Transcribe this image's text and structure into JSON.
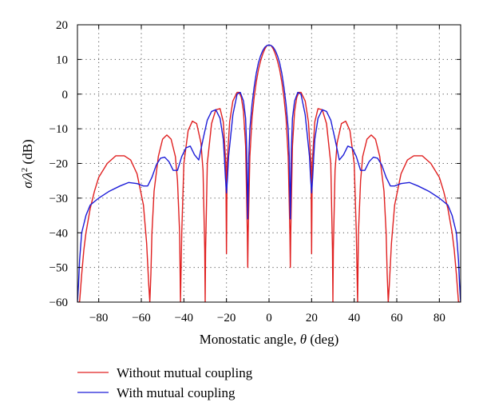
{
  "chart_data": {
    "type": "line",
    "xlabel_prefix": "Monostatic angle, ",
    "xlabel_symbol": "θ",
    "xlabel_suffix": " (deg)",
    "ylabel_prefix": "σ/λ",
    "ylabel_sup": "2",
    "ylabel_suffix": " (dB)",
    "xlim": [
      -90,
      90
    ],
    "ylim": [
      -60,
      20
    ],
    "xticks": [
      -80,
      -60,
      -40,
      -20,
      0,
      20,
      40,
      60,
      80
    ],
    "yticks": [
      -60,
      -50,
      -40,
      -30,
      -20,
      -10,
      0,
      10,
      20
    ],
    "grid": true,
    "legend_position": "bottom-left",
    "series": [
      {
        "name": "Without mutual coupling",
        "color": "#e02020",
        "x": [
          -90,
          -89,
          -88,
          -87,
          -86,
          -84,
          -82,
          -80,
          -76,
          -72,
          -68,
          -65,
          -62,
          -59,
          -57.5,
          -56.5,
          -56,
          -55.5,
          -55,
          -54,
          -52,
          -50,
          -48,
          -46,
          -44,
          -43,
          -42,
          -41.6,
          -41,
          -40,
          -38,
          -36,
          -34,
          -32,
          -31,
          -30.2,
          -30,
          -29.8,
          -29,
          -27,
          -25,
          -23,
          -21.5,
          -20.3,
          -20,
          -19.7,
          -18.5,
          -17,
          -15,
          -14,
          -13,
          -12,
          -11,
          -10.2,
          -10,
          -9.8,
          -9,
          -8,
          -7,
          -6,
          -5,
          -4,
          -3,
          -2,
          -1,
          0,
          1,
          2,
          3,
          4,
          5,
          6,
          7,
          8,
          9,
          9.8,
          10,
          10.2,
          11,
          12,
          13,
          14,
          15,
          17,
          18.5,
          19.7,
          20,
          20.3,
          21.5,
          23,
          25,
          27,
          29,
          29.8,
          30,
          30.2,
          31,
          32,
          34,
          36,
          38,
          40,
          41,
          41.6,
          42,
          43,
          44,
          46,
          48,
          50,
          52,
          54,
          55,
          55.5,
          56,
          56.5,
          57.5,
          59,
          62,
          65,
          68,
          72,
          76,
          80,
          82,
          84,
          86,
          87,
          88,
          89,
          90
        ],
        "y": [
          -60,
          -60,
          -52,
          -45,
          -40,
          -33,
          -28,
          -24,
          -20,
          -17.8,
          -17.8,
          -19,
          -23,
          -32,
          -43,
          -55,
          -60,
          -52,
          -40,
          -28,
          -18,
          -13,
          -11.8,
          -13,
          -18,
          -25,
          -40,
          -60,
          -40,
          -20,
          -10.5,
          -7.8,
          -8.5,
          -14,
          -22,
          -45,
          -60,
          -45,
          -20,
          -8.5,
          -4.5,
          -4.2,
          -8,
          -20,
          -46,
          -20,
          -8,
          -2,
          0.5,
          0.5,
          -1,
          -5,
          -15,
          -40,
          -50,
          -40,
          -18,
          -7,
          -1,
          3.5,
          7,
          9.5,
          11.5,
          13,
          14,
          14.2,
          14,
          13,
          11.5,
          9.5,
          7,
          3.5,
          -1,
          -7,
          -18,
          -40,
          -50,
          -40,
          -15,
          -5,
          -1,
          0.5,
          0.5,
          -2,
          -8,
          -20,
          -46,
          -20,
          -8,
          -4.2,
          -4.5,
          -8.5,
          -20,
          -45,
          -60,
          -45,
          -22,
          -14,
          -8.5,
          -7.8,
          -10.5,
          -20,
          -40,
          -60,
          -40,
          -25,
          -18,
          -13,
          -11.8,
          -13,
          -18,
          -28,
          -40,
          -52,
          -60,
          -55,
          -43,
          -32,
          -23,
          -19,
          -17.8,
          -17.8,
          -20,
          -24,
          -28,
          -33,
          -40,
          -45,
          -52,
          -60,
          -60
        ]
      },
      {
        "name": "With mutual coupling",
        "color": "#1c1cd8",
        "x": [
          -90,
          -89.5,
          -89,
          -88,
          -86,
          -84,
          -80,
          -75,
          -70,
          -66,
          -62,
          -59,
          -57,
          -55,
          -53,
          -51,
          -49,
          -47,
          -45,
          -43,
          -41,
          -39,
          -37,
          -35,
          -33,
          -31,
          -29,
          -27,
          -25,
          -23,
          -21.5,
          -21,
          -20.5,
          -20,
          -19.5,
          -19,
          -17,
          -15,
          -13.5,
          -12,
          -11,
          -10.5,
          -10,
          -9.5,
          -9,
          -8,
          -7,
          -6,
          -5,
          -4,
          -3,
          -2,
          -1,
          0,
          1,
          2,
          3,
          4,
          5,
          6,
          7,
          8,
          9,
          9.5,
          10,
          10.5,
          11,
          12,
          13.5,
          15,
          17,
          19,
          19.5,
          20,
          20.5,
          21,
          21.5,
          23,
          25,
          27,
          29,
          31,
          33,
          35,
          37,
          39,
          41,
          43,
          45,
          47,
          49,
          51,
          53,
          55,
          57,
          59,
          62,
          66,
          70,
          75,
          80,
          84,
          86,
          88,
          89,
          89.5,
          90
        ],
        "y": [
          -60,
          -55,
          -48,
          -40,
          -35,
          -32,
          -30,
          -28,
          -26.5,
          -25.5,
          -25.8,
          -26.5,
          -26.5,
          -24,
          -20.5,
          -18.5,
          -18.2,
          -19.5,
          -22,
          -22,
          -18,
          -15.5,
          -15,
          -17.5,
          -19,
          -13,
          -7.5,
          -5,
          -4.5,
          -7,
          -13,
          -18,
          -24,
          -28.5,
          -24,
          -18,
          -6,
          0,
          0.5,
          -2,
          -7,
          -16,
          -36,
          -18,
          -10,
          -3,
          2,
          6,
          9,
          11,
          12.5,
          13.5,
          14,
          14.2,
          14,
          13.5,
          12.5,
          11,
          9,
          6,
          2,
          -3,
          -10,
          -18,
          -36,
          -16,
          -7,
          -2,
          0.5,
          0,
          -6,
          -18,
          -24,
          -28.5,
          -24,
          -18,
          -13,
          -7,
          -4.5,
          -5,
          -7.5,
          -13,
          -19,
          -17.5,
          -15,
          -15.5,
          -18,
          -22,
          -22,
          -19.5,
          -18.2,
          -18.5,
          -20.5,
          -24,
          -26.5,
          -26.5,
          -25.8,
          -25.5,
          -26.5,
          -28,
          -30,
          -32,
          -35,
          -40,
          -48,
          -55,
          -60
        ]
      }
    ]
  }
}
